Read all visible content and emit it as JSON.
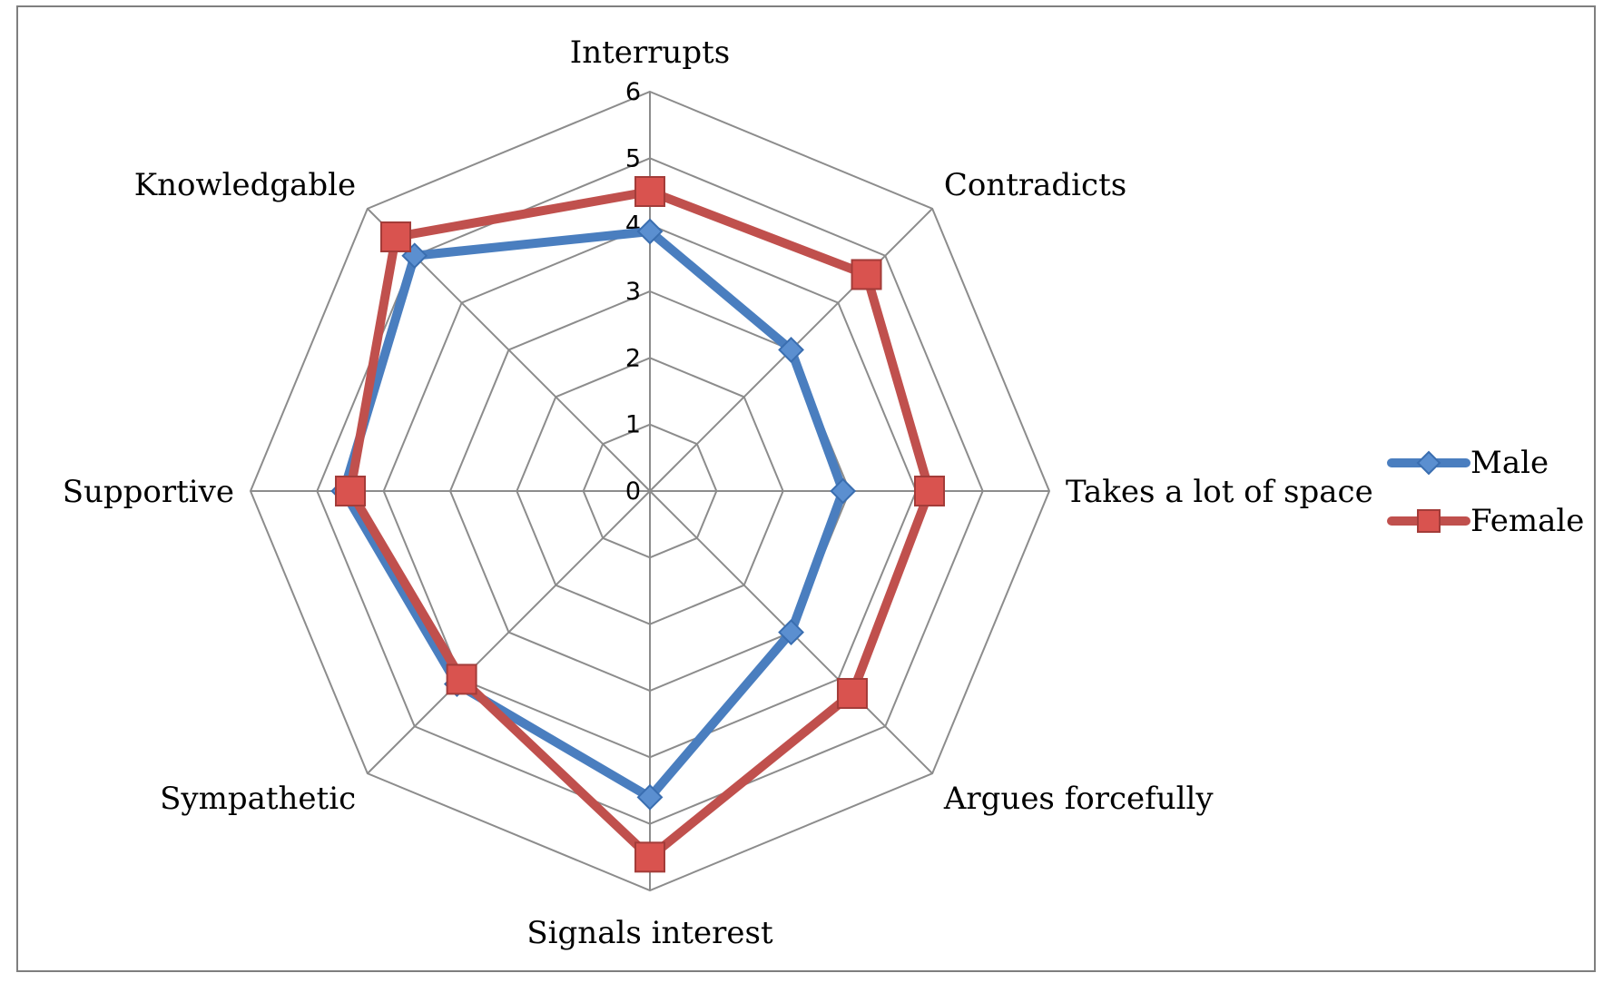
{
  "chart_data": {
    "type": "radar",
    "categories": [
      "Interrupts",
      "Contradicts",
      "Takes a lot of space",
      "Argues forcefully",
      "Signals interest",
      "Sympathetic",
      "Supportive",
      "Knowledgable"
    ],
    "series": [
      {
        "name": "Male",
        "color": "#4a7ebf",
        "marker": "diamond",
        "values": [
          3.9,
          3.0,
          2.9,
          3.0,
          4.6,
          4.1,
          4.6,
          5.0
        ]
      },
      {
        "name": "Female",
        "color": "#c0504d",
        "marker": "square",
        "values": [
          4.5,
          4.6,
          4.2,
          4.3,
          5.5,
          4.0,
          4.5,
          5.4
        ]
      }
    ],
    "rlim": [
      0,
      6
    ],
    "ticks": [
      "0",
      "1",
      "2",
      "3",
      "4",
      "5",
      "6"
    ],
    "grid": true,
    "legend_position": "right"
  }
}
